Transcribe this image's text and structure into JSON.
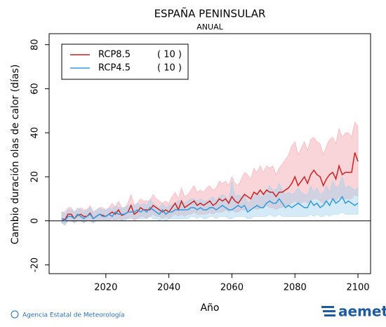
{
  "chart_data": {
    "type": "line",
    "title": "ESPAÑA PENINSULAR",
    "subtitle": "ANUAL",
    "x_label": "Año",
    "y_label": "Cambio duración olas de calor (días)",
    "footer": {
      "credit": "Agencia Estatal de Meteorología",
      "logo": "aemet"
    },
    "xlim": [
      2002,
      2104
    ],
    "xticks": [
      2020,
      2040,
      2060,
      2080,
      2100
    ],
    "ylim": [
      -24,
      85
    ],
    "yticks": [
      -20,
      0,
      20,
      40,
      60,
      80
    ],
    "legend": "upper left",
    "x": [
      2006,
      2007,
      2008,
      2009,
      2010,
      2011,
      2012,
      2013,
      2014,
      2015,
      2016,
      2017,
      2018,
      2019,
      2020,
      2021,
      2022,
      2023,
      2024,
      2025,
      2026,
      2027,
      2028,
      2029,
      2030,
      2031,
      2032,
      2033,
      2034,
      2035,
      2036,
      2037,
      2038,
      2039,
      2040,
      2041,
      2042,
      2043,
      2044,
      2045,
      2046,
      2047,
      2048,
      2049,
      2050,
      2051,
      2052,
      2053,
      2054,
      2055,
      2056,
      2057,
      2058,
      2059,
      2060,
      2061,
      2062,
      2063,
      2064,
      2065,
      2066,
      2067,
      2068,
      2069,
      2070,
      2071,
      2072,
      2073,
      2074,
      2075,
      2076,
      2077,
      2078,
      2079,
      2080,
      2081,
      2082,
      2083,
      2084,
      2085,
      2086,
      2087,
      2088,
      2089,
      2090,
      2091,
      2092,
      2093,
      2094,
      2095,
      2096,
      2097,
      2098,
      2099,
      2100
    ],
    "series": [
      {
        "name": "RCP8.5",
        "models": "( 10 )",
        "color": "#cc2222",
        "band_color": "#f2a0aa",
        "values": [
          1,
          0.5,
          3,
          3,
          1,
          2.5,
          3,
          2,
          2,
          3.5,
          1,
          2,
          3,
          2.5,
          2,
          3,
          4,
          3,
          5,
          2.5,
          3,
          4,
          7,
          3,
          4,
          6,
          5,
          5,
          5,
          7,
          6,
          5,
          4,
          5,
          4,
          6,
          8,
          5,
          9,
          6,
          7,
          8,
          9,
          7,
          8,
          7,
          8,
          9,
          7,
          8,
          10,
          9,
          10,
          8,
          11,
          9,
          8,
          10,
          12,
          11,
          10,
          13,
          12,
          14,
          12,
          14,
          13,
          13,
          11,
          13,
          13,
          14,
          15,
          17,
          20,
          16,
          18,
          20,
          17,
          21,
          23,
          21,
          20,
          16,
          19,
          21,
          22,
          19,
          25,
          21,
          22,
          22,
          22,
          31,
          27
        ],
        "low": [
          -1,
          -2,
          0,
          0,
          -1,
          0,
          0,
          -1,
          0,
          0,
          -1,
          0,
          0,
          0,
          0,
          0,
          1,
          0,
          1,
          0,
          1,
          1,
          2,
          0,
          1,
          2,
          2,
          1,
          2,
          3,
          2,
          2,
          1,
          2,
          1,
          2,
          3,
          2,
          3,
          2,
          3,
          3,
          4,
          3,
          3,
          3,
          3,
          4,
          3,
          4,
          4,
          4,
          5,
          4,
          5,
          4,
          4,
          5,
          5,
          5,
          5,
          6,
          5,
          6,
          6,
          7,
          6,
          6,
          5,
          6,
          6,
          7,
          7,
          8,
          9,
          8,
          8,
          9,
          8,
          9,
          10,
          10,
          9,
          8,
          9,
          10,
          10,
          9,
          11,
          10,
          10,
          10,
          10,
          12,
          11
        ],
        "high": [
          4,
          4,
          6,
          6,
          4,
          5,
          6,
          5,
          5,
          7,
          4,
          5,
          6,
          6,
          5,
          6,
          8,
          6,
          9,
          6,
          6,
          8,
          12,
          7,
          8,
          10,
          9,
          9,
          9,
          12,
          10,
          9,
          8,
          9,
          8,
          11,
          13,
          10,
          15,
          11,
          12,
          14,
          16,
          13,
          14,
          13,
          15,
          16,
          14,
          15,
          18,
          17,
          18,
          16,
          20,
          17,
          16,
          19,
          22,
          21,
          19,
          24,
          22,
          25,
          22,
          25,
          24,
          25,
          21,
          24,
          26,
          28,
          30,
          34,
          36,
          30,
          33,
          36,
          32,
          37,
          38,
          36,
          35,
          30,
          34,
          37,
          38,
          35,
          42,
          38,
          40,
          40,
          38,
          45,
          43
        ]
      },
      {
        "name": "RCP4.5",
        "models": "( 10 )",
        "color": "#3399dd",
        "band_color": "#9fd0ea",
        "values": [
          1,
          0,
          2,
          2,
          1,
          3,
          2,
          1,
          2,
          3,
          1,
          2,
          3,
          2,
          2,
          3,
          2,
          4,
          3,
          3,
          3,
          4,
          4,
          4,
          5,
          4,
          5,
          4,
          6,
          5,
          4,
          3,
          5,
          3,
          4,
          4,
          5,
          5,
          5,
          5,
          5,
          6,
          6,
          5,
          6,
          5,
          5,
          6,
          6,
          5,
          6,
          7,
          6,
          5,
          5,
          6,
          7,
          6,
          7,
          4,
          5,
          6,
          7,
          6,
          6,
          8,
          9,
          8,
          8,
          10,
          8,
          6,
          7,
          6,
          7,
          8,
          7,
          6,
          6,
          9,
          7,
          8,
          6,
          7,
          9,
          7,
          10,
          8,
          9,
          11,
          8,
          9,
          8,
          7,
          8
        ],
        "low": [
          -1,
          -2,
          0,
          0,
          -1,
          0,
          0,
          -1,
          0,
          0,
          -1,
          0,
          0,
          0,
          0,
          0,
          0,
          1,
          0,
          0,
          0,
          1,
          1,
          1,
          1,
          1,
          1,
          1,
          2,
          1,
          1,
          0,
          1,
          0,
          1,
          1,
          1,
          1,
          1,
          1,
          1,
          2,
          2,
          1,
          2,
          1,
          1,
          2,
          2,
          1,
          2,
          2,
          2,
          1,
          1,
          2,
          2,
          2,
          2,
          1,
          1,
          2,
          2,
          2,
          2,
          2,
          3,
          2,
          2,
          3,
          2,
          2,
          2,
          2,
          2,
          2,
          2,
          2,
          2,
          3,
          2,
          3,
          2,
          2,
          3,
          2,
          3,
          3,
          3,
          4,
          3,
          3,
          3,
          3,
          3
        ],
        "high": [
          4,
          3,
          5,
          5,
          4,
          6,
          5,
          4,
          5,
          6,
          4,
          5,
          6,
          5,
          5,
          6,
          5,
          7,
          6,
          6,
          6,
          7,
          7,
          7,
          8,
          7,
          8,
          7,
          10,
          8,
          7,
          6,
          8,
          6,
          7,
          7,
          8,
          9,
          9,
          8,
          9,
          10,
          10,
          9,
          10,
          9,
          9,
          10,
          11,
          9,
          11,
          12,
          11,
          9,
          18,
          11,
          12,
          11,
          12,
          8,
          9,
          11,
          13,
          11,
          11,
          14,
          16,
          14,
          14,
          17,
          14,
          12,
          13,
          12,
          13,
          15,
          13,
          12,
          12,
          16,
          13,
          15,
          12,
          13,
          16,
          13,
          18,
          15,
          16,
          20,
          15,
          16,
          15,
          14,
          15
        ]
      }
    ]
  }
}
